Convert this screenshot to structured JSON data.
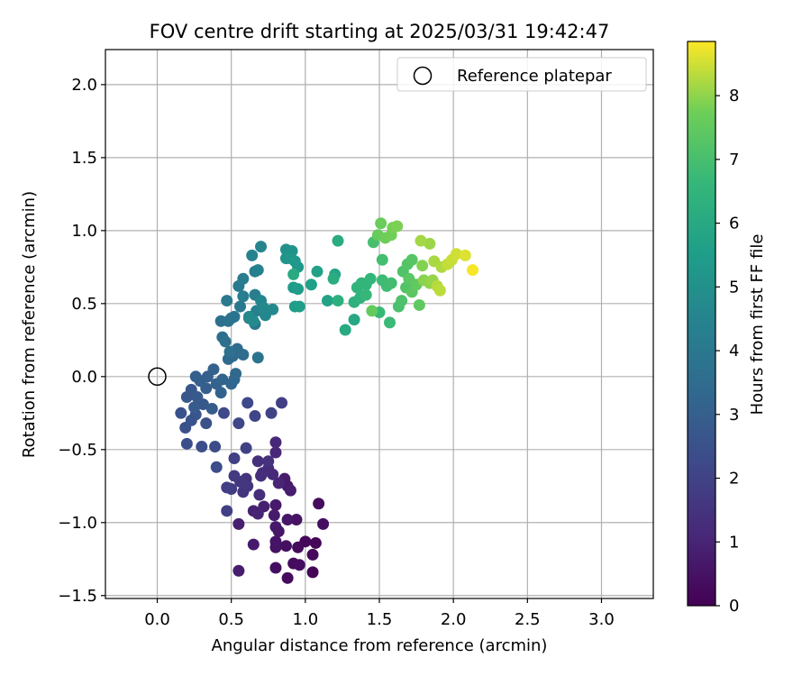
{
  "chart_data": {
    "type": "scatter",
    "title": "FOV centre drift starting at 2025/03/31 19:42:47",
    "xlabel": "Angular distance from reference (arcmin)",
    "ylabel": "Rotation from reference (arcmin)",
    "xlim": [
      -0.35,
      3.35
    ],
    "ylim": [
      -1.52,
      2.24
    ],
    "xticks": [
      0.0,
      0.5,
      1.0,
      1.5,
      2.0,
      2.5,
      3.0
    ],
    "xtick_labels": [
      "0.0",
      "0.5",
      "1.0",
      "1.5",
      "2.0",
      "2.5",
      "3.0"
    ],
    "yticks": [
      -1.5,
      -1.0,
      -0.5,
      0.0,
      0.5,
      1.0,
      1.5,
      2.0
    ],
    "ytick_labels": [
      "−1.5",
      "−1.0",
      "−0.5",
      "0.0",
      "0.5",
      "1.0",
      "1.5",
      "2.0"
    ],
    "grid": true,
    "legend": {
      "placement": "top-right",
      "entries": [
        {
          "label": "Reference platepar",
          "marker": "open-circle"
        }
      ]
    },
    "reference_point": {
      "x": 0.0,
      "y": 0.0
    },
    "colorbar": {
      "label": "Hours from first FF file",
      "colormap": "viridis",
      "range": [
        0,
        8.85
      ],
      "ticks": [
        0,
        1,
        2,
        3,
        4,
        5,
        6,
        7,
        8
      ],
      "tick_labels": [
        "0",
        "1",
        "2",
        "3",
        "4",
        "5",
        "6",
        "7",
        "8"
      ]
    },
    "series": [
      {
        "values": [
          {
            "x": 1.05,
            "y": -1.34,
            "t": 0.1
          },
          {
            "x": 1.07,
            "y": -1.14,
            "t": 0.15
          },
          {
            "x": 1.05,
            "y": -1.22,
            "t": 0.2
          },
          {
            "x": 1.0,
            "y": -1.13,
            "t": 0.2
          },
          {
            "x": 0.95,
            "y": -1.17,
            "t": 0.25
          },
          {
            "x": 0.92,
            "y": -1.28,
            "t": 0.3
          },
          {
            "x": 0.88,
            "y": -1.38,
            "t": 0.3
          },
          {
            "x": 0.96,
            "y": -1.29,
            "t": 0.35
          },
          {
            "x": 0.8,
            "y": -1.31,
            "t": 0.4
          },
          {
            "x": 0.87,
            "y": -1.16,
            "t": 0.4
          },
          {
            "x": 1.09,
            "y": -0.87,
            "t": 0.3
          },
          {
            "x": 1.12,
            "y": -1.01,
            "t": 0.35
          },
          {
            "x": 0.94,
            "y": -0.98,
            "t": 0.5
          },
          {
            "x": 0.8,
            "y": -1.17,
            "t": 0.5
          },
          {
            "x": 0.8,
            "y": -1.13,
            "t": 0.55
          },
          {
            "x": 0.82,
            "y": -1.06,
            "t": 0.6
          },
          {
            "x": 0.8,
            "y": -1.03,
            "t": 0.65
          },
          {
            "x": 0.88,
            "y": -0.98,
            "t": 0.6
          },
          {
            "x": 0.88,
            "y": -0.75,
            "t": 0.7
          },
          {
            "x": 0.86,
            "y": -0.7,
            "t": 0.75
          },
          {
            "x": 0.9,
            "y": -0.78,
            "t": 0.8
          },
          {
            "x": 0.8,
            "y": -0.88,
            "t": 0.7
          },
          {
            "x": 0.79,
            "y": -0.95,
            "t": 0.75
          },
          {
            "x": 0.65,
            "y": -1.15,
            "t": 0.75
          },
          {
            "x": 0.55,
            "y": -1.33,
            "t": 0.8
          },
          {
            "x": 0.55,
            "y": -1.01,
            "t": 0.85
          },
          {
            "x": 0.72,
            "y": -0.89,
            "t": 0.9
          },
          {
            "x": 0.65,
            "y": -0.92,
            "t": 0.95
          },
          {
            "x": 0.68,
            "y": -0.94,
            "t": 1.0
          },
          {
            "x": 0.82,
            "y": -0.73,
            "t": 1.0
          },
          {
            "x": 0.8,
            "y": -0.52,
            "t": 1.1
          },
          {
            "x": 0.8,
            "y": -0.45,
            "t": 1.1
          },
          {
            "x": 0.78,
            "y": -0.67,
            "t": 1.15
          },
          {
            "x": 0.75,
            "y": -0.63,
            "t": 1.2
          },
          {
            "x": 0.71,
            "y": -0.66,
            "t": 1.25
          },
          {
            "x": 0.69,
            "y": -0.81,
            "t": 1.3
          },
          {
            "x": 0.7,
            "y": -0.68,
            "t": 1.3
          },
          {
            "x": 0.68,
            "y": -0.58,
            "t": 1.35
          },
          {
            "x": 0.75,
            "y": -0.58,
            "t": 1.4
          },
          {
            "x": 0.6,
            "y": -0.7,
            "t": 1.45
          },
          {
            "x": 0.58,
            "y": -0.79,
            "t": 1.5
          },
          {
            "x": 0.61,
            "y": -0.75,
            "t": 1.55
          },
          {
            "x": 0.56,
            "y": -0.72,
            "t": 1.6
          },
          {
            "x": 0.52,
            "y": -0.68,
            "t": 1.7
          },
          {
            "x": 0.5,
            "y": -0.77,
            "t": 1.75
          },
          {
            "x": 0.47,
            "y": -0.76,
            "t": 1.85
          },
          {
            "x": 0.47,
            "y": -0.92,
            "t": 1.9
          },
          {
            "x": 0.52,
            "y": -0.56,
            "t": 1.9
          },
          {
            "x": 0.6,
            "y": -0.49,
            "t": 1.95
          },
          {
            "x": 0.84,
            "y": -0.18,
            "t": 1.9
          },
          {
            "x": 0.77,
            "y": -0.25,
            "t": 2.0
          },
          {
            "x": 0.66,
            "y": -0.27,
            "t": 2.1
          },
          {
            "x": 0.55,
            "y": -0.32,
            "t": 2.15
          },
          {
            "x": 0.61,
            "y": -0.18,
            "t": 2.2
          },
          {
            "x": 0.45,
            "y": -0.25,
            "t": 2.25
          },
          {
            "x": 0.39,
            "y": -0.48,
            "t": 2.3
          },
          {
            "x": 0.4,
            "y": -0.62,
            "t": 2.35
          },
          {
            "x": 0.3,
            "y": -0.48,
            "t": 2.4
          },
          {
            "x": 0.2,
            "y": -0.46,
            "t": 2.4
          },
          {
            "x": 0.33,
            "y": -0.32,
            "t": 2.5
          },
          {
            "x": 0.19,
            "y": -0.35,
            "t": 2.5
          },
          {
            "x": 0.16,
            "y": -0.25,
            "t": 2.55
          },
          {
            "x": 0.23,
            "y": -0.3,
            "t": 2.6
          },
          {
            "x": 0.26,
            "y": -0.26,
            "t": 2.65
          },
          {
            "x": 0.31,
            "y": -0.19,
            "t": 2.7
          },
          {
            "x": 0.2,
            "y": -0.14,
            "t": 2.7
          },
          {
            "x": 0.23,
            "y": -0.09,
            "t": 2.75
          },
          {
            "x": 0.27,
            "y": -0.14,
            "t": 2.8
          },
          {
            "x": 0.25,
            "y": -0.21,
            "t": 2.85
          },
          {
            "x": 0.37,
            "y": -0.22,
            "t": 2.9
          },
          {
            "x": 0.33,
            "y": -0.08,
            "t": 2.95
          },
          {
            "x": 0.29,
            "y": -0.03,
            "t": 3.0
          },
          {
            "x": 0.26,
            "y": 0.0,
            "t": 3.0
          },
          {
            "x": 0.34,
            "y": 0.0,
            "t": 3.05
          },
          {
            "x": 0.38,
            "y": 0.05,
            "t": 3.1
          },
          {
            "x": 0.4,
            "y": -0.05,
            "t": 3.1
          },
          {
            "x": 0.43,
            "y": -0.11,
            "t": 3.15
          },
          {
            "x": 0.44,
            "y": -0.02,
            "t": 3.2
          },
          {
            "x": 0.5,
            "y": -0.05,
            "t": 3.25
          },
          {
            "x": 0.52,
            "y": -0.02,
            "t": 3.3
          },
          {
            "x": 0.53,
            "y": 0.02,
            "t": 3.35
          },
          {
            "x": 0.48,
            "y": 0.12,
            "t": 3.4
          },
          {
            "x": 0.51,
            "y": 0.14,
            "t": 3.45
          },
          {
            "x": 0.54,
            "y": 0.19,
            "t": 3.5
          },
          {
            "x": 0.58,
            "y": 0.15,
            "t": 3.55
          },
          {
            "x": 0.44,
            "y": 0.27,
            "t": 3.6
          },
          {
            "x": 0.46,
            "y": 0.24,
            "t": 3.65
          },
          {
            "x": 0.49,
            "y": 0.17,
            "t": 3.65
          },
          {
            "x": 0.43,
            "y": 0.38,
            "t": 3.7
          },
          {
            "x": 0.48,
            "y": 0.38,
            "t": 3.75
          },
          {
            "x": 0.5,
            "y": 0.4,
            "t": 3.8
          },
          {
            "x": 0.52,
            "y": 0.41,
            "t": 3.8
          },
          {
            "x": 0.68,
            "y": 0.13,
            "t": 3.85
          },
          {
            "x": 0.66,
            "y": 0.36,
            "t": 3.9
          },
          {
            "x": 0.62,
            "y": 0.4,
            "t": 3.95
          },
          {
            "x": 0.56,
            "y": 0.48,
            "t": 4.0
          },
          {
            "x": 0.47,
            "y": 0.52,
            "t": 4.05
          },
          {
            "x": 0.55,
            "y": 0.62,
            "t": 4.1
          },
          {
            "x": 0.58,
            "y": 0.67,
            "t": 4.15
          },
          {
            "x": 0.58,
            "y": 0.55,
            "t": 4.2
          },
          {
            "x": 0.66,
            "y": 0.56,
            "t": 4.25
          },
          {
            "x": 0.66,
            "y": 0.72,
            "t": 4.3
          },
          {
            "x": 0.67,
            "y": 0.45,
            "t": 4.35
          },
          {
            "x": 0.68,
            "y": 0.73,
            "t": 4.4
          },
          {
            "x": 0.64,
            "y": 0.83,
            "t": 4.45
          },
          {
            "x": 0.7,
            "y": 0.89,
            "t": 4.5
          },
          {
            "x": 0.7,
            "y": 0.52,
            "t": 4.55
          },
          {
            "x": 0.73,
            "y": 0.42,
            "t": 4.6
          },
          {
            "x": 0.72,
            "y": 0.47,
            "t": 4.65
          },
          {
            "x": 0.78,
            "y": 0.46,
            "t": 4.7
          },
          {
            "x": 0.65,
            "y": 0.38,
            "t": 4.75
          },
          {
            "x": 0.62,
            "y": 0.41,
            "t": 4.8
          },
          {
            "x": 0.87,
            "y": 0.87,
            "t": 5.0
          },
          {
            "x": 0.91,
            "y": 0.86,
            "t": 5.1
          },
          {
            "x": 0.87,
            "y": 0.81,
            "t": 5.15
          },
          {
            "x": 0.9,
            "y": 0.81,
            "t": 5.2
          },
          {
            "x": 0.93,
            "y": 0.79,
            "t": 5.3
          },
          {
            "x": 0.95,
            "y": 0.75,
            "t": 5.35
          },
          {
            "x": 0.92,
            "y": 0.61,
            "t": 5.4
          },
          {
            "x": 0.95,
            "y": 0.6,
            "t": 5.45
          },
          {
            "x": 0.93,
            "y": 0.48,
            "t": 5.5
          },
          {
            "x": 0.96,
            "y": 0.48,
            "t": 5.55
          },
          {
            "x": 1.04,
            "y": 0.63,
            "t": 5.6
          },
          {
            "x": 1.08,
            "y": 0.72,
            "t": 5.65
          },
          {
            "x": 1.15,
            "y": 0.52,
            "t": 5.75
          },
          {
            "x": 1.2,
            "y": 0.7,
            "t": 5.85
          },
          {
            "x": 1.33,
            "y": 0.39,
            "t": 5.95
          },
          {
            "x": 1.27,
            "y": 0.32,
            "t": 6.0
          },
          {
            "x": 0.92,
            "y": 0.7,
            "t": 6.05
          },
          {
            "x": 1.22,
            "y": 0.93,
            "t": 6.1
          },
          {
            "x": 1.19,
            "y": 0.67,
            "t": 6.2
          },
          {
            "x": 1.22,
            "y": 0.52,
            "t": 6.3
          },
          {
            "x": 1.33,
            "y": 0.51,
            "t": 6.35
          },
          {
            "x": 1.37,
            "y": 0.54,
            "t": 6.4
          },
          {
            "x": 1.35,
            "y": 0.61,
            "t": 6.45
          },
          {
            "x": 1.38,
            "y": 0.64,
            "t": 6.5
          },
          {
            "x": 1.41,
            "y": 0.63,
            "t": 6.55
          },
          {
            "x": 1.44,
            "y": 0.67,
            "t": 6.6
          },
          {
            "x": 1.41,
            "y": 0.56,
            "t": 6.65
          },
          {
            "x": 1.5,
            "y": 0.44,
            "t": 6.7
          },
          {
            "x": 1.57,
            "y": 0.37,
            "t": 6.75
          },
          {
            "x": 1.52,
            "y": 0.66,
            "t": 6.8
          },
          {
            "x": 1.55,
            "y": 0.62,
            "t": 6.85
          },
          {
            "x": 1.58,
            "y": 0.64,
            "t": 6.9
          },
          {
            "x": 1.52,
            "y": 0.8,
            "t": 6.95
          },
          {
            "x": 1.46,
            "y": 0.92,
            "t": 7.0
          },
          {
            "x": 1.63,
            "y": 0.48,
            "t": 7.05
          },
          {
            "x": 1.65,
            "y": 0.52,
            "t": 7.1
          },
          {
            "x": 1.66,
            "y": 0.72,
            "t": 7.15
          },
          {
            "x": 1.68,
            "y": 0.61,
            "t": 7.2
          },
          {
            "x": 1.69,
            "y": 0.77,
            "t": 7.25
          },
          {
            "x": 1.72,
            "y": 0.8,
            "t": 7.3
          },
          {
            "x": 1.7,
            "y": 0.67,
            "t": 7.35
          },
          {
            "x": 1.72,
            "y": 0.58,
            "t": 7.4
          },
          {
            "x": 1.77,
            "y": 0.49,
            "t": 7.45
          },
          {
            "x": 1.75,
            "y": 0.63,
            "t": 7.5
          },
          {
            "x": 1.45,
            "y": 0.45,
            "t": 7.55
          },
          {
            "x": 1.49,
            "y": 0.97,
            "t": 7.6
          },
          {
            "x": 1.51,
            "y": 1.05,
            "t": 7.65
          },
          {
            "x": 1.54,
            "y": 0.95,
            "t": 7.7
          },
          {
            "x": 1.58,
            "y": 0.97,
            "t": 7.75
          },
          {
            "x": 1.59,
            "y": 1.02,
            "t": 7.8
          },
          {
            "x": 1.62,
            "y": 1.03,
            "t": 7.85
          },
          {
            "x": 1.79,
            "y": 0.76,
            "t": 7.9
          },
          {
            "x": 1.8,
            "y": 0.66,
            "t": 7.95
          },
          {
            "x": 1.84,
            "y": 0.64,
            "t": 8.0
          },
          {
            "x": 1.86,
            "y": 0.66,
            "t": 8.05
          },
          {
            "x": 1.84,
            "y": 0.91,
            "t": 8.1
          },
          {
            "x": 1.78,
            "y": 0.93,
            "t": 8.15
          },
          {
            "x": 1.87,
            "y": 0.79,
            "t": 8.2
          },
          {
            "x": 1.92,
            "y": 0.75,
            "t": 8.25
          },
          {
            "x": 1.89,
            "y": 0.62,
            "t": 8.3
          },
          {
            "x": 1.91,
            "y": 0.59,
            "t": 8.35
          },
          {
            "x": 1.96,
            "y": 0.77,
            "t": 8.4
          },
          {
            "x": 1.99,
            "y": 0.8,
            "t": 8.45
          },
          {
            "x": 2.02,
            "y": 0.84,
            "t": 8.5
          },
          {
            "x": 2.08,
            "y": 0.83,
            "t": 8.6
          },
          {
            "x": 2.13,
            "y": 0.73,
            "t": 8.8
          }
        ]
      }
    ]
  }
}
